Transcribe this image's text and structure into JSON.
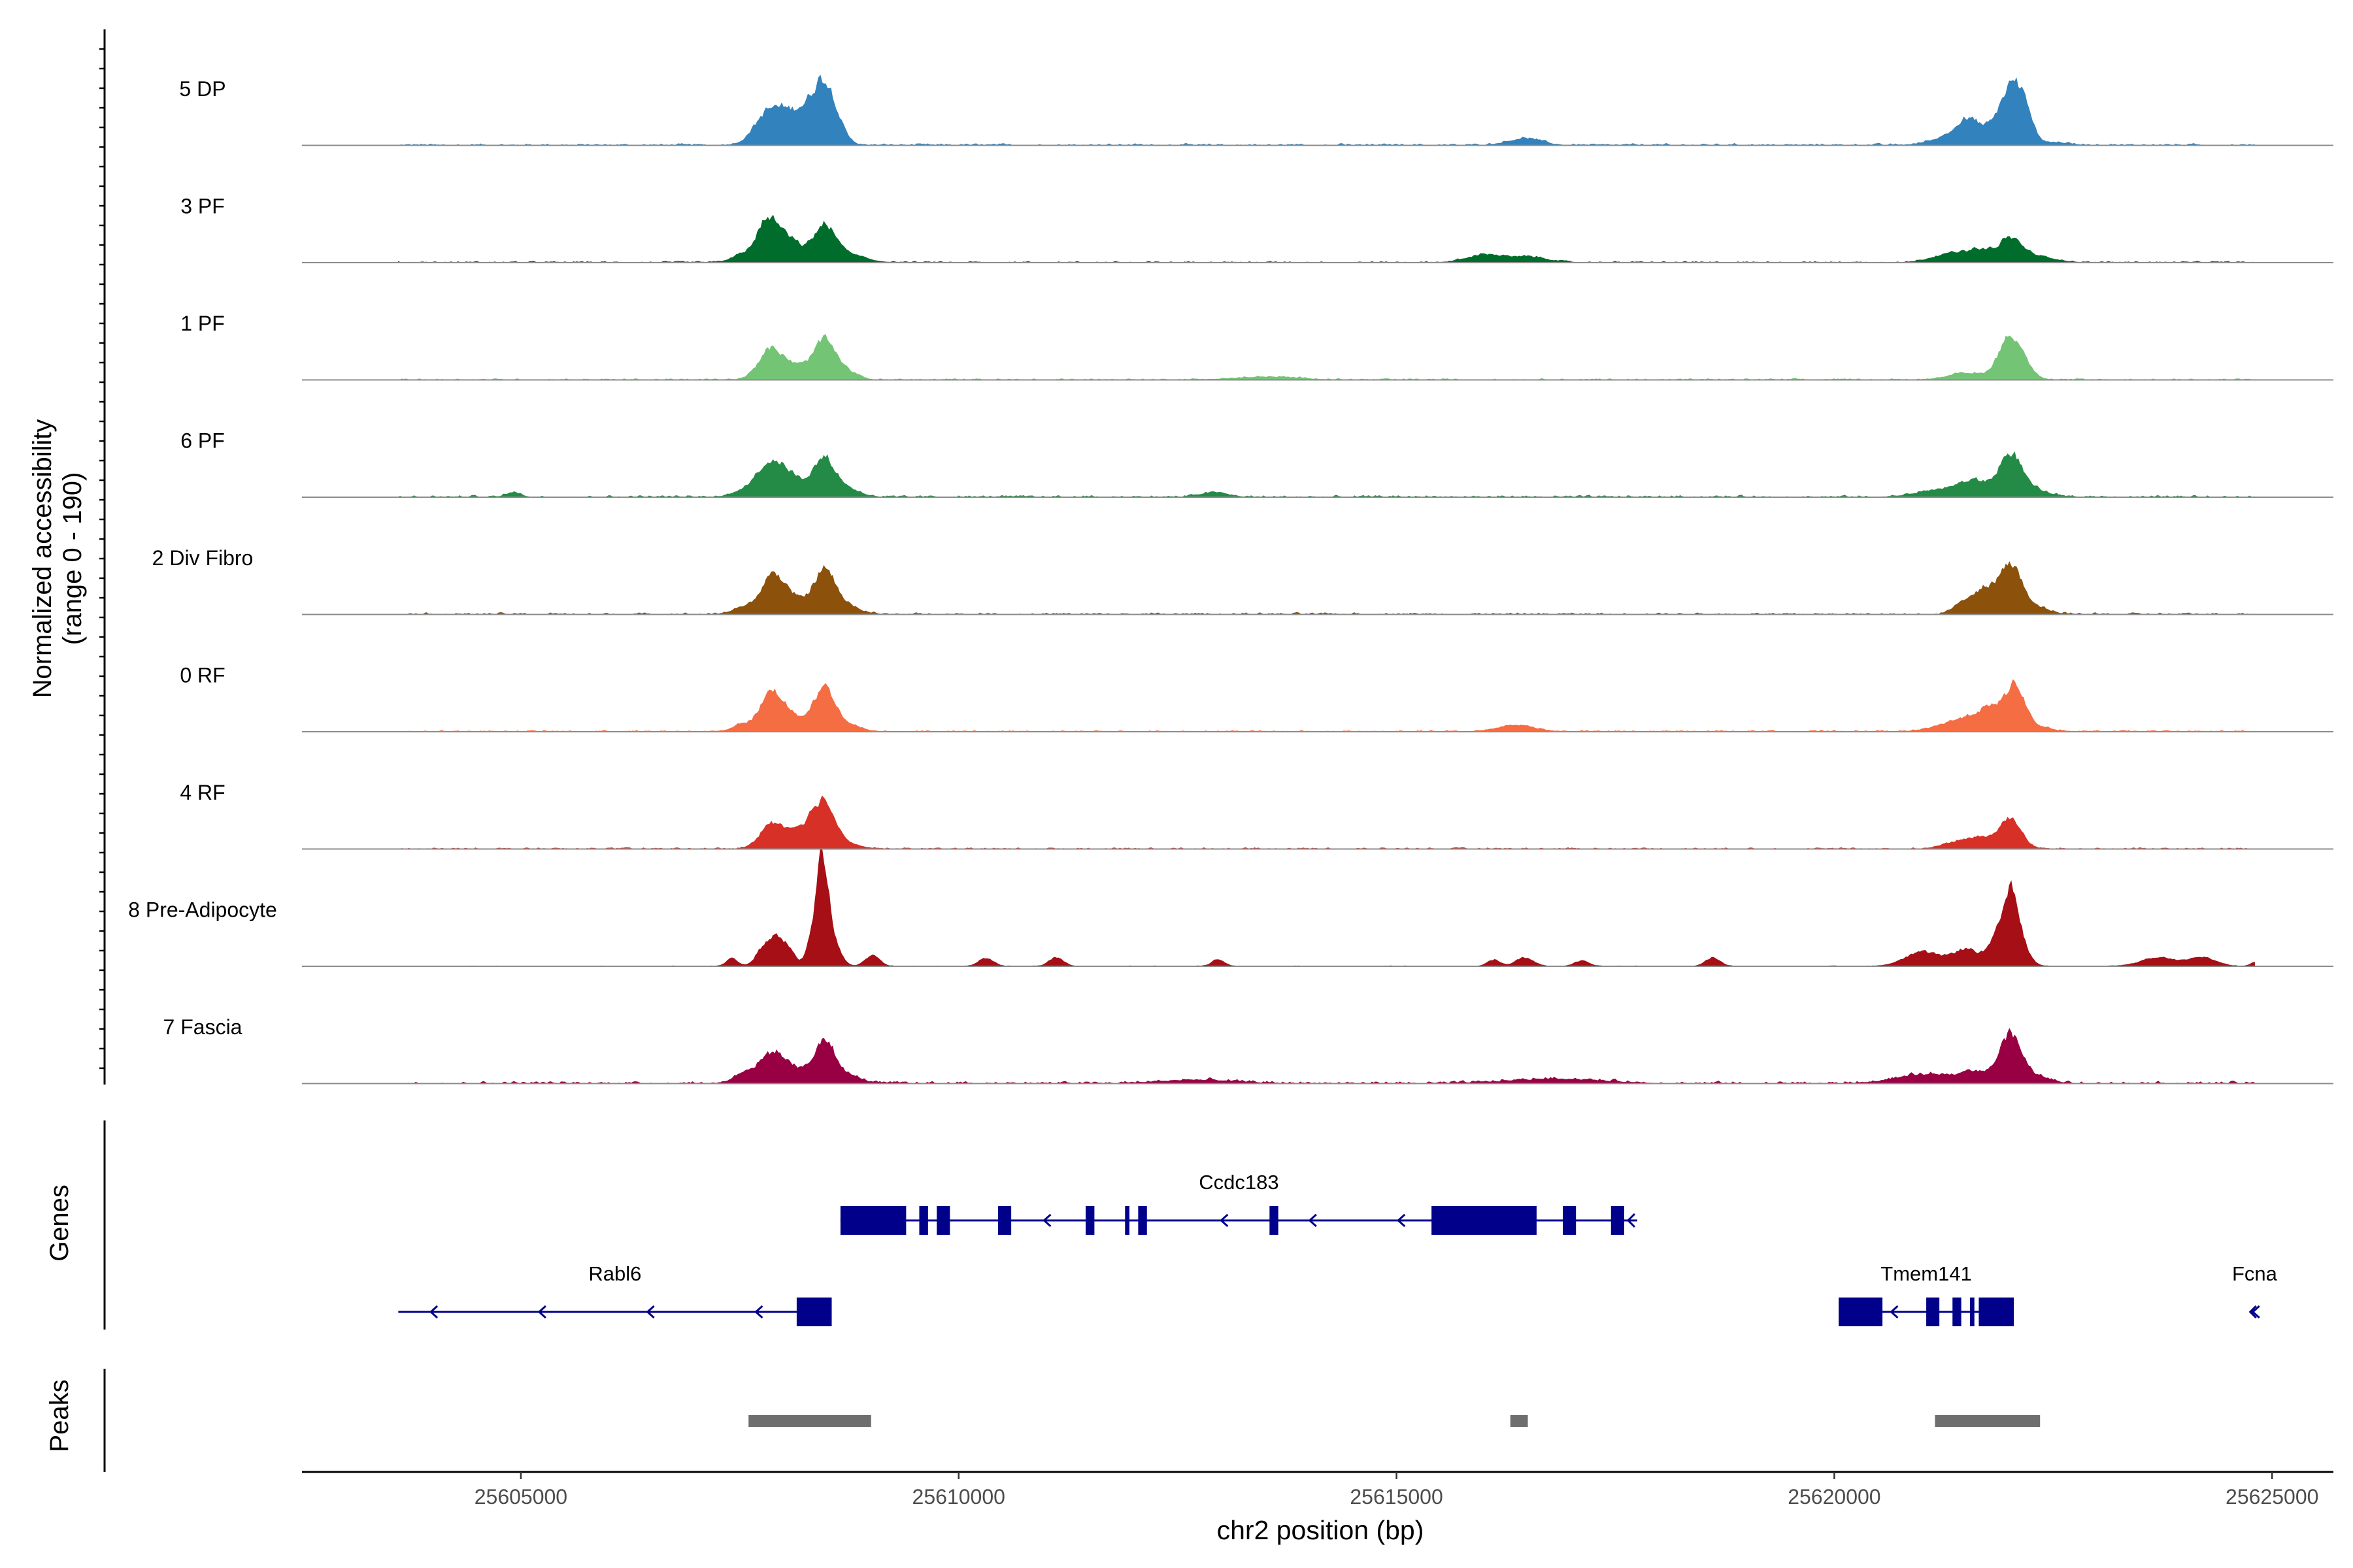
{
  "chart_data": {
    "type": "area",
    "title": "",
    "chromosome": "chr2",
    "xlabel": "chr2 position (bp)",
    "ylabel": "Normalized accessibility",
    "ylabel_range": "(range 0 - 190)",
    "ylim": [
      0,
      190
    ],
    "xlim": [
      25602500,
      25625700
    ],
    "x_ticks": [
      25605000,
      25610000,
      25615000,
      25620000,
      25625000
    ],
    "x_tick_labels": [
      "25605000",
      "25610000",
      "25615000",
      "25620000",
      "25625000"
    ],
    "tracks": [
      {
        "name": "5 DP",
        "color": "#3182bd",
        "noise": [
          [
            25603600,
            25624800,
            4
          ]
        ],
        "peaks": [
          [
            25607800,
            150,
            53
          ],
          [
            25608050,
            150,
            35
          ],
          [
            25608300,
            180,
            45
          ],
          [
            25608450,
            120,
            80
          ],
          [
            25608600,
            100,
            18
          ],
          [
            25616450,
            180,
            12
          ],
          [
            25621300,
            200,
            15
          ],
          [
            25621500,
            120,
            30
          ],
          [
            25621700,
            140,
            20
          ],
          [
            25622000,
            130,
            95
          ],
          [
            25622150,
            100,
            40
          ],
          [
            25622500,
            150,
            5
          ]
        ]
      },
      {
        "name": "3 PF",
        "color": "#006d2c",
        "noise": [
          [
            25603600,
            25624800,
            3
          ]
        ],
        "peaks": [
          [
            25607500,
            120,
            12
          ],
          [
            25607800,
            120,
            70
          ],
          [
            25608050,
            150,
            38
          ],
          [
            25608450,
            120,
            60
          ],
          [
            25608700,
            200,
            15
          ],
          [
            25616000,
            200,
            14
          ],
          [
            25616500,
            200,
            10
          ],
          [
            25621300,
            200,
            15
          ],
          [
            25621650,
            150,
            20
          ],
          [
            25622000,
            130,
            40
          ],
          [
            25622300,
            200,
            10
          ]
        ]
      },
      {
        "name": "1 PF",
        "color": "#74c476",
        "noise": [
          [
            25603600,
            25624800,
            3
          ]
        ],
        "peaks": [
          [
            25607850,
            140,
            55
          ],
          [
            25608150,
            120,
            20
          ],
          [
            25608450,
            120,
            70
          ],
          [
            25608700,
            120,
            15
          ],
          [
            25613500,
            350,
            5
          ],
          [
            25621500,
            200,
            12
          ],
          [
            25622000,
            130,
            78
          ],
          [
            25622200,
            100,
            8
          ]
        ]
      },
      {
        "name": "6 PF",
        "color": "#238b45",
        "noise": [
          [
            25603600,
            25624800,
            4
          ]
        ],
        "peaks": [
          [
            25604900,
            80,
            8
          ],
          [
            25607600,
            150,
            15
          ],
          [
            25607850,
            140,
            55
          ],
          [
            25608100,
            150,
            30
          ],
          [
            25608450,
            120,
            65
          ],
          [
            25608700,
            150,
            15
          ],
          [
            25612900,
            150,
            8
          ],
          [
            25621300,
            300,
            15
          ],
          [
            25621600,
            150,
            20
          ],
          [
            25622000,
            130,
            75
          ],
          [
            25622300,
            150,
            10
          ]
        ]
      },
      {
        "name": "2 Div Fibro",
        "color": "#8c510a",
        "noise": [
          [
            25603600,
            25624800,
            4
          ]
        ],
        "peaks": [
          [
            25607500,
            100,
            12
          ],
          [
            25607850,
            130,
            65
          ],
          [
            25608100,
            150,
            25
          ],
          [
            25608450,
            120,
            75
          ],
          [
            25608700,
            150,
            15
          ],
          [
            25621450,
            100,
            20
          ],
          [
            25621700,
            120,
            40
          ],
          [
            25622000,
            130,
            85
          ],
          [
            25622300,
            150,
            10
          ]
        ]
      },
      {
        "name": "0 RF",
        "color": "#f46d43",
        "noise": [
          [
            25603600,
            25624800,
            3
          ]
        ],
        "peaks": [
          [
            25607500,
            100,
            12
          ],
          [
            25607850,
            130,
            68
          ],
          [
            25608100,
            150,
            22
          ],
          [
            25608450,
            120,
            75
          ],
          [
            25608700,
            150,
            12
          ],
          [
            25616350,
            200,
            12
          ],
          [
            25621300,
            200,
            12
          ],
          [
            25621600,
            180,
            22
          ],
          [
            25621800,
            120,
            28
          ],
          [
            25622050,
            110,
            80
          ],
          [
            25622300,
            150,
            8
          ]
        ]
      },
      {
        "name": "4 RF",
        "color": "#d73027",
        "noise": [
          [
            25603600,
            25624800,
            3
          ]
        ],
        "peaks": [
          [
            25607850,
            130,
            42
          ],
          [
            25608100,
            150,
            15
          ],
          [
            25608250,
            150,
            25
          ],
          [
            25608450,
            120,
            75
          ],
          [
            25608700,
            150,
            10
          ],
          [
            25621350,
            150,
            10
          ],
          [
            25621650,
            150,
            20
          ],
          [
            25622000,
            120,
            55
          ]
        ]
      },
      {
        "name": "8 Pre-Adipocyte",
        "color": "#a50f15",
        "noise": [
          [
            25603600,
            25624800,
            1
          ]
        ],
        "peaks": [
          [
            25607400,
            60,
            15
          ],
          [
            25607750,
            80,
            30
          ],
          [
            25607900,
            80,
            45
          ],
          [
            25608050,
            70,
            28
          ],
          [
            25608300,
            60,
            35
          ],
          [
            25608400,
            60,
            70
          ],
          [
            25608450,
            70,
            140
          ],
          [
            25608600,
            70,
            25
          ],
          [
            25609000,
            80,
            20
          ],
          [
            25610300,
            80,
            15
          ],
          [
            25611100,
            80,
            15
          ],
          [
            25612950,
            70,
            12
          ],
          [
            25616100,
            70,
            12
          ],
          [
            25616450,
            100,
            15
          ],
          [
            25617100,
            80,
            10
          ],
          [
            25618600,
            80,
            15
          ],
          [
            25621000,
            200,
            25
          ],
          [
            25621500,
            150,
            30
          ],
          [
            25621850,
            100,
            45
          ],
          [
            25622000,
            80,
            100
          ],
          [
            25622100,
            100,
            40
          ],
          [
            25623700,
            200,
            15
          ],
          [
            25624200,
            150,
            15
          ],
          [
            25624800,
            50,
            8
          ]
        ]
      },
      {
        "name": "7 Fascia",
        "color": "#980043",
        "noise": [
          [
            25603600,
            25624800,
            5
          ]
        ],
        "peaks": [
          [
            25607550,
            120,
            20
          ],
          [
            25607850,
            130,
            48
          ],
          [
            25608100,
            150,
            25
          ],
          [
            25608450,
            110,
            75
          ],
          [
            25608700,
            150,
            15
          ],
          [
            25612700,
            400,
            6
          ],
          [
            25616800,
            500,
            8
          ],
          [
            25621000,
            300,
            15
          ],
          [
            25621600,
            200,
            20
          ],
          [
            25622000,
            120,
            85
          ],
          [
            25622300,
            150,
            12
          ]
        ]
      }
    ],
    "genes": [
      {
        "name": "Ccdc183",
        "strand": "-",
        "start": 25608650,
        "end": 25617750,
        "exons": [
          [
            25608650,
            25609400
          ],
          [
            25609550,
            25609650
          ],
          [
            25609750,
            25609900
          ],
          [
            25610450,
            25610600
          ],
          [
            25611450,
            25611550
          ],
          [
            25611900,
            25611950
          ],
          [
            25612050,
            25612150
          ],
          [
            25613550,
            25613650
          ],
          [
            25615400,
            25616600
          ],
          [
            25616900,
            25617050
          ],
          [
            25617450,
            25617600
          ]
        ]
      },
      {
        "name": "Rabl6",
        "strand": "-",
        "start": 25603600,
        "end": 25608550,
        "exons": [
          [
            25608150,
            25608550
          ]
        ]
      },
      {
        "name": "Tmem141",
        "strand": "-",
        "start": 25620050,
        "end": 25622050,
        "exons": [
          [
            25620050,
            25620550
          ],
          [
            25621050,
            25621200
          ],
          [
            25621350,
            25621450
          ],
          [
            25621550,
            25621600
          ],
          [
            25621650,
            25622050
          ]
        ]
      },
      {
        "name": "Fcna",
        "strand": "-",
        "start": 25624750,
        "end": 25624850,
        "exons": []
      }
    ],
    "peak_regions": [
      [
        25607600,
        25609000
      ],
      [
        25616300,
        25616500
      ],
      [
        25621150,
        25622350
      ]
    ],
    "panel_labels": {
      "genes": "Genes",
      "peaks": "Peaks"
    },
    "colors": {
      "gene": "#00008b",
      "peak": "#6e6e6e",
      "baseline": "#8c8c8c",
      "axis": "#000000"
    }
  }
}
